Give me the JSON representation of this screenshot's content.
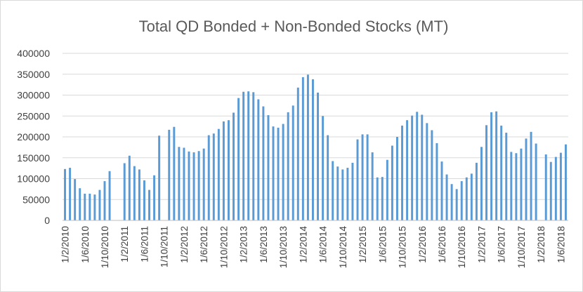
{
  "chart_data": {
    "type": "bar",
    "title": "Total QD Bonded + Non-Bonded Stocks (MT)",
    "xlabel": "",
    "ylabel": "",
    "ylim": [
      0,
      400000
    ],
    "yticks": [
      0,
      50000,
      100000,
      150000,
      200000,
      250000,
      300000,
      350000,
      400000
    ],
    "grid": true,
    "legend": "none",
    "colors": {
      "bar": "#5b9bd5",
      "grid": "#d9d9d9",
      "axis": "#bfbfbf",
      "text": "#404040",
      "title": "#595959"
    },
    "x_tick_labels": [
      {
        "label": "1/2/2010",
        "index": 0
      },
      {
        "label": "1/6/2010",
        "index": 4
      },
      {
        "label": "1/10/2010",
        "index": 8
      },
      {
        "label": "1/2/2011",
        "index": 12
      },
      {
        "label": "1/6/2011",
        "index": 16
      },
      {
        "label": "1/10/2011",
        "index": 20
      },
      {
        "label": "1/2/2012",
        "index": 24
      },
      {
        "label": "1/6/2012",
        "index": 28
      },
      {
        "label": "1/10/2012",
        "index": 32
      },
      {
        "label": "1/2/2013",
        "index": 36
      },
      {
        "label": "1/6/2013",
        "index": 40
      },
      {
        "label": "1/10/2013",
        "index": 44
      },
      {
        "label": "1/2/2014",
        "index": 48
      },
      {
        "label": "1/6/2014",
        "index": 52
      },
      {
        "label": "1/10/2014",
        "index": 56
      },
      {
        "label": "1/2/2015",
        "index": 60
      },
      {
        "label": "1/6/2015",
        "index": 64
      },
      {
        "label": "1/10/2015",
        "index": 68
      },
      {
        "label": "1/2/2016",
        "index": 72
      },
      {
        "label": "1/6/2016",
        "index": 76
      },
      {
        "label": "1/10/2016",
        "index": 80
      },
      {
        "label": "1/2/2017",
        "index": 84
      },
      {
        "label": "1/6/2017",
        "index": 88
      },
      {
        "label": "1/10/2017",
        "index": 92
      },
      {
        "label": "1/2/2018",
        "index": 96
      },
      {
        "label": "1/6/2018",
        "index": 100
      }
    ],
    "values": [
      123000,
      126000,
      99000,
      77000,
      64000,
      64000,
      62000,
      73000,
      94000,
      118000,
      null,
      null,
      137000,
      155000,
      130000,
      122000,
      96000,
      73000,
      108000,
      203000,
      null,
      217000,
      224000,
      176000,
      174000,
      165000,
      163000,
      166000,
      172000,
      204000,
      208000,
      219000,
      237000,
      240000,
      258000,
      293000,
      308000,
      309000,
      307000,
      290000,
      273000,
      252000,
      225000,
      222000,
      231000,
      259000,
      275000,
      318000,
      343000,
      349000,
      338000,
      306000,
      250000,
      204000,
      142000,
      129000,
      122000,
      126000,
      138000,
      194000,
      206000,
      206000,
      163000,
      103000,
      104000,
      145000,
      179000,
      200000,
      227000,
      240000,
      251000,
      260000,
      253000,
      233000,
      216000,
      185000,
      141000,
      110000,
      87000,
      75000,
      94000,
      103000,
      112000,
      138000,
      176000,
      228000,
      259000,
      261000,
      227000,
      210000,
      164000,
      161000,
      172000,
      196000,
      212000,
      184000,
      null,
      158000,
      140000,
      152000,
      162000,
      182000
    ]
  }
}
